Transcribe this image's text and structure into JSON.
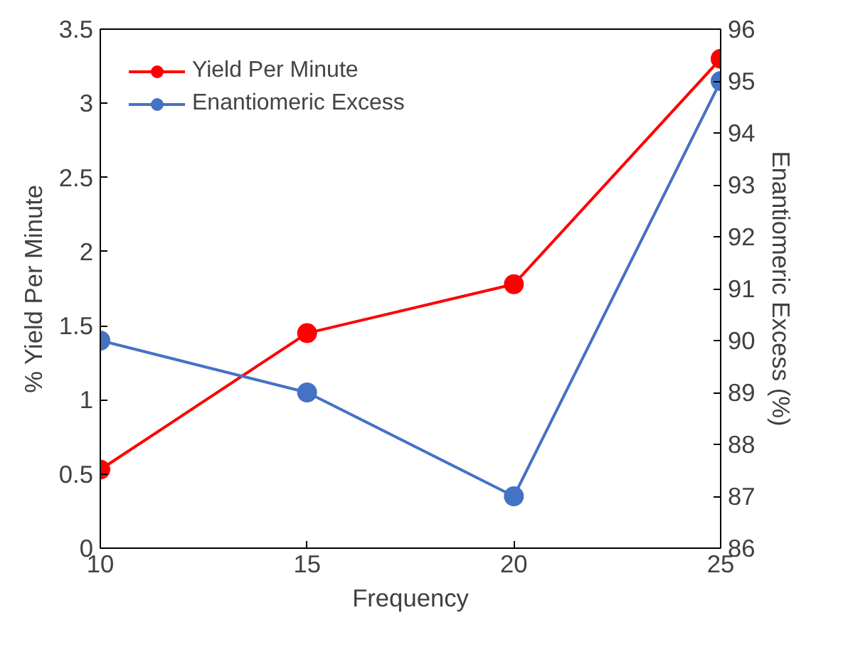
{
  "chart_data": {
    "type": "line",
    "xlabel": "Frequency",
    "ylabel": "% Yield Per Minute",
    "y2label": "Enantiomeric Excess (%)",
    "x": [
      10,
      15,
      20,
      25
    ],
    "series": [
      {
        "name": "Yield Per Minute",
        "color": "#ff0000",
        "values": [
          0.53,
          1.45,
          1.78,
          3.3
        ]
      },
      {
        "name": "Enantiomeric Excess",
        "color": "#4472c4",
        "values": [
          90,
          89,
          87,
          95
        ],
        "axis": "y2"
      }
    ],
    "xlim": [
      10,
      25
    ],
    "xticks": [
      10,
      15,
      20,
      25
    ],
    "ylim": [
      0,
      3.5
    ],
    "yticks": [
      0,
      0.5,
      1,
      1.5,
      2,
      2.5,
      3,
      3.5
    ],
    "y2lim": [
      86,
      96
    ],
    "y2ticks": [
      86,
      87,
      88,
      89,
      90,
      91,
      92,
      93,
      94,
      95,
      96
    ],
    "marker": "circle",
    "grid": false,
    "legend": "top left"
  }
}
